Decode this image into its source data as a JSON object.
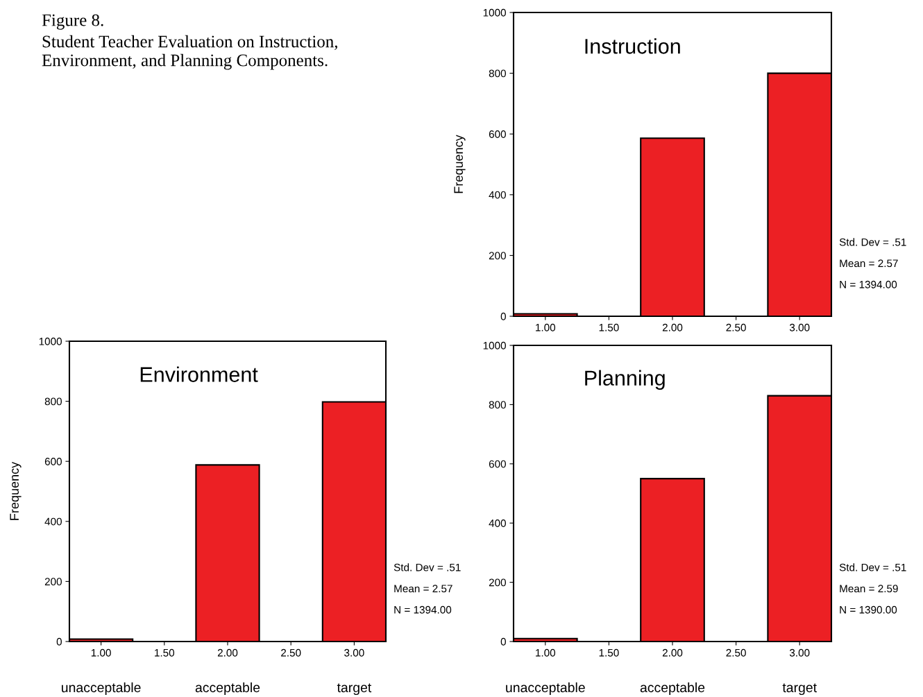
{
  "chart_data": [
    {
      "type": "other",
      "title": "Figure 8.",
      "subtitle": "Student Teacher Evaluation on Instruction,\nEnvironment, and Planning Components."
    },
    {
      "type": "histogram",
      "title": "Instruction",
      "ylabel": "Frequency",
      "bins": [
        0.75,
        1.25,
        1.75,
        2.25,
        2.75,
        3.25
      ],
      "values": [
        8,
        0,
        586,
        0,
        800
      ],
      "color": "#ec2024",
      "xlim": [
        0.75,
        3.25
      ],
      "xticks": [
        {
          "value": 1,
          "label": "1.00"
        },
        {
          "value": 1.5,
          "label": "1.50"
        },
        {
          "value": 2,
          "label": "2.00"
        },
        {
          "value": 2.5,
          "label": "2.50"
        },
        {
          "value": 3,
          "label": "3.00"
        }
      ],
      "ylim": [
        0,
        1000
      ],
      "yticks": [
        0,
        200,
        400,
        600,
        800,
        1000
      ],
      "grid": false,
      "annotations": [
        "Std. Dev = .51",
        "Mean = 2.57",
        "N = 1394.00"
      ]
    },
    {
      "type": "histogram",
      "title": "Environment",
      "ylabel": "Frequency",
      "bins": [
        0.75,
        1.25,
        1.75,
        2.25,
        2.75,
        3.25
      ],
      "values": [
        8,
        0,
        588,
        0,
        798
      ],
      "color": "#ec2024",
      "xlim": [
        0.75,
        3.25
      ],
      "xticks": [
        {
          "value": 1,
          "label": "1.00"
        },
        {
          "value": 1.5,
          "label": "1.50"
        },
        {
          "value": 2,
          "label": "2.00"
        },
        {
          "value": 2.5,
          "label": "2.50"
        },
        {
          "value": 3,
          "label": "3.00"
        }
      ],
      "ylim": [
        0,
        1000
      ],
      "yticks": [
        0,
        200,
        400,
        600,
        800,
        1000
      ],
      "grid": false,
      "annotations": [
        "Std. Dev = .51",
        "Mean = 2.57",
        "N = 1394.00",
        "unacceptable",
        "acceptable",
        "target"
      ]
    },
    {
      "type": "histogram",
      "title": "Planning",
      "bins": [
        0.75,
        1.25,
        1.75,
        2.25,
        2.75,
        3.25
      ],
      "values": [
        10,
        0,
        550,
        0,
        830
      ],
      "color": "#ec2024",
      "xlim": [
        0.75,
        3.25
      ],
      "xticks": [
        {
          "value": 1,
          "label": "1.00"
        },
        {
          "value": 1.5,
          "label": "1.50"
        },
        {
          "value": 2,
          "label": "2.00"
        },
        {
          "value": 2.5,
          "label": "2.50"
        },
        {
          "value": 3,
          "label": "3.00"
        }
      ],
      "ylim": [
        0,
        1000
      ],
      "yticks": [
        0,
        200,
        400,
        600,
        800,
        1000
      ],
      "grid": false,
      "annotations": [
        "Std. Dev = .51",
        "Mean = 2.59",
        "N = 1390.00",
        "unacceptable",
        "acceptable",
        "target"
      ]
    }
  ]
}
